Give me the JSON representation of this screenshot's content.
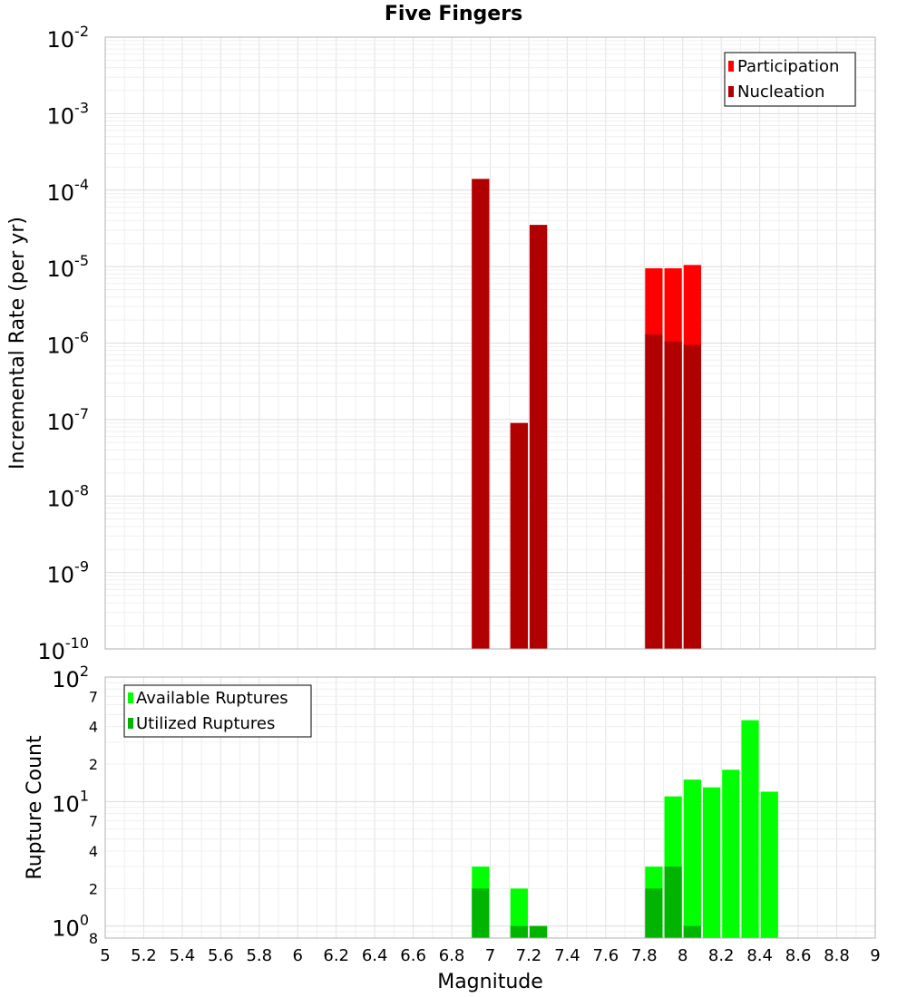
{
  "chart_data": [
    {
      "type": "bar",
      "panel": "top",
      "title": "Five Fingers",
      "ylabel": "Incremental Rate (per yr)",
      "xlabel": "Magnitude",
      "yscale": "log",
      "ylim": [
        1e-10,
        0.01
      ],
      "xlim": [
        5,
        9
      ],
      "grid": true,
      "legend_position": "top-right",
      "y_ticks": [
        {
          "base": "10",
          "exp": "-10",
          "value": 1e-10
        },
        {
          "base": "10",
          "exp": "-9",
          "value": 1e-09
        },
        {
          "base": "10",
          "exp": "-8",
          "value": 1e-08
        },
        {
          "base": "10",
          "exp": "-7",
          "value": 1e-07
        },
        {
          "base": "10",
          "exp": "-6",
          "value": 1e-06
        },
        {
          "base": "10",
          "exp": "-5",
          "value": 1e-05
        },
        {
          "base": "10",
          "exp": "-4",
          "value": 0.0001
        },
        {
          "base": "10",
          "exp": "-3",
          "value": 0.001
        },
        {
          "base": "10",
          "exp": "-2",
          "value": 0.01
        }
      ],
      "series": [
        {
          "name": "Participation",
          "color": "#ff0000",
          "points": [
            {
              "x": 6.95,
              "y": 0.00014
            },
            {
              "x": 7.15,
              "y": 9e-08
            },
            {
              "x": 7.25,
              "y": 3.5e-05
            },
            {
              "x": 7.85,
              "y": 9.5e-06
            },
            {
              "x": 7.95,
              "y": 9.5e-06
            },
            {
              "x": 8.05,
              "y": 1.05e-05
            }
          ]
        },
        {
          "name": "Nucleation",
          "color": "#b00000",
          "points": [
            {
              "x": 6.95,
              "y": 0.00014
            },
            {
              "x": 7.15,
              "y": 9e-08
            },
            {
              "x": 7.25,
              "y": 3.5e-05
            },
            {
              "x": 7.85,
              "y": 1.3e-06
            },
            {
              "x": 7.95,
              "y": 1.05e-06
            },
            {
              "x": 8.05,
              "y": 9.5e-07
            }
          ]
        }
      ]
    },
    {
      "type": "bar",
      "panel": "bottom",
      "ylabel": "Rupture Count",
      "xlabel": "Magnitude",
      "yscale": "log",
      "ylim": [
        0.8,
        100
      ],
      "xlim": [
        5,
        9
      ],
      "grid": true,
      "legend_position": "top-left",
      "y_ticks": [
        {
          "base": "10",
          "exp": "0",
          "value": 1
        },
        {
          "base": "10",
          "exp": "1",
          "value": 10
        },
        {
          "base": "10",
          "exp": "2",
          "value": 100
        }
      ],
      "y_minor_labels": [
        {
          "label": "8",
          "value": 0.8
        },
        {
          "label": "2",
          "value": 2
        },
        {
          "label": "4",
          "value": 4
        },
        {
          "label": "7",
          "value": 7
        },
        {
          "label": "2",
          "value": 20
        },
        {
          "label": "4",
          "value": 40
        },
        {
          "label": "7",
          "value": 70
        }
      ],
      "x_ticks": [
        "5",
        "5.2",
        "5.4",
        "5.6",
        "5.8",
        "6",
        "6.2",
        "6.4",
        "6.6",
        "6.8",
        "7",
        "7.2",
        "7.4",
        "7.6",
        "7.8",
        "8",
        "8.2",
        "8.4",
        "8.6",
        "8.8",
        "9"
      ],
      "series": [
        {
          "name": "Available Ruptures",
          "color": "#00ff00",
          "points": [
            {
              "x": 6.95,
              "y": 3
            },
            {
              "x": 7.15,
              "y": 2
            },
            {
              "x": 7.25,
              "y": 1
            },
            {
              "x": 7.85,
              "y": 3
            },
            {
              "x": 7.95,
              "y": 11
            },
            {
              "x": 8.05,
              "y": 15
            },
            {
              "x": 8.15,
              "y": 13
            },
            {
              "x": 8.25,
              "y": 18
            },
            {
              "x": 8.35,
              "y": 45
            },
            {
              "x": 8.45,
              "y": 12
            }
          ]
        },
        {
          "name": "Utilized Ruptures",
          "color": "#00b400",
          "points": [
            {
              "x": 6.95,
              "y": 2
            },
            {
              "x": 7.15,
              "y": 1
            },
            {
              "x": 7.25,
              "y": 1
            },
            {
              "x": 7.85,
              "y": 2
            },
            {
              "x": 7.95,
              "y": 3
            },
            {
              "x": 8.05,
              "y": 1
            }
          ]
        }
      ]
    }
  ]
}
